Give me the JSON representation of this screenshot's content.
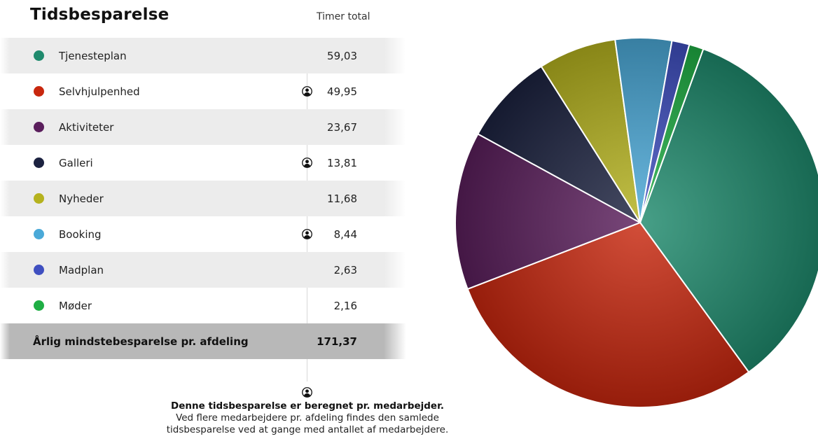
{
  "header": {
    "title": "Tidsbesparelse",
    "column_label": "Timer total"
  },
  "rows": [
    {
      "label": "Tjenesteplan",
      "value": "59,03",
      "color": "#1f8a6d",
      "per_employee": false
    },
    {
      "label": "Selvhjulpenhed",
      "value": "49,95",
      "color": "#c8270e",
      "per_employee": true
    },
    {
      "label": "Aktiviteter",
      "value": "23,67",
      "color": "#5a1e5c",
      "per_employee": false
    },
    {
      "label": "Galleri",
      "value": "13,81",
      "color": "#1c2240",
      "per_employee": true
    },
    {
      "label": "Nyheder",
      "value": "11,68",
      "color": "#b5b21e",
      "per_employee": false
    },
    {
      "label": "Booking",
      "value": "8,44",
      "color": "#4aa9d8",
      "per_employee": true
    },
    {
      "label": "Madplan",
      "value": "2,63",
      "color": "#3f4fc0",
      "per_employee": false
    },
    {
      "label": "Møder",
      "value": "2,16",
      "color": "#1fae44",
      "per_employee": false
    }
  ],
  "total": {
    "label": "Årlig mindstebesparelse pr. afdeling",
    "value": "171,37"
  },
  "footnote": {
    "line1": "Denne tidsbesparelse er beregnet pr. medarbejder.",
    "line2": "Ved flere medarbejdere pr. afdeling findes den samlede",
    "line3": "tidsbesparelse ved at gange med antallet af medarbejdere."
  },
  "chart_data": {
    "type": "pie",
    "categories": [
      "Tjenesteplan",
      "Selvhjulpenhed",
      "Aktiviteter",
      "Galleri",
      "Nyheder",
      "Booking",
      "Madplan",
      "Møder"
    ],
    "values": [
      59.03,
      49.95,
      23.67,
      13.81,
      11.68,
      8.44,
      2.63,
      2.16
    ],
    "colors": [
      "#1f8a6d",
      "#c8270e",
      "#5a1e5c",
      "#1c2240",
      "#b5b21e",
      "#4aa9d8",
      "#3f4fc0",
      "#1fae44"
    ],
    "legend": "left-table"
  }
}
